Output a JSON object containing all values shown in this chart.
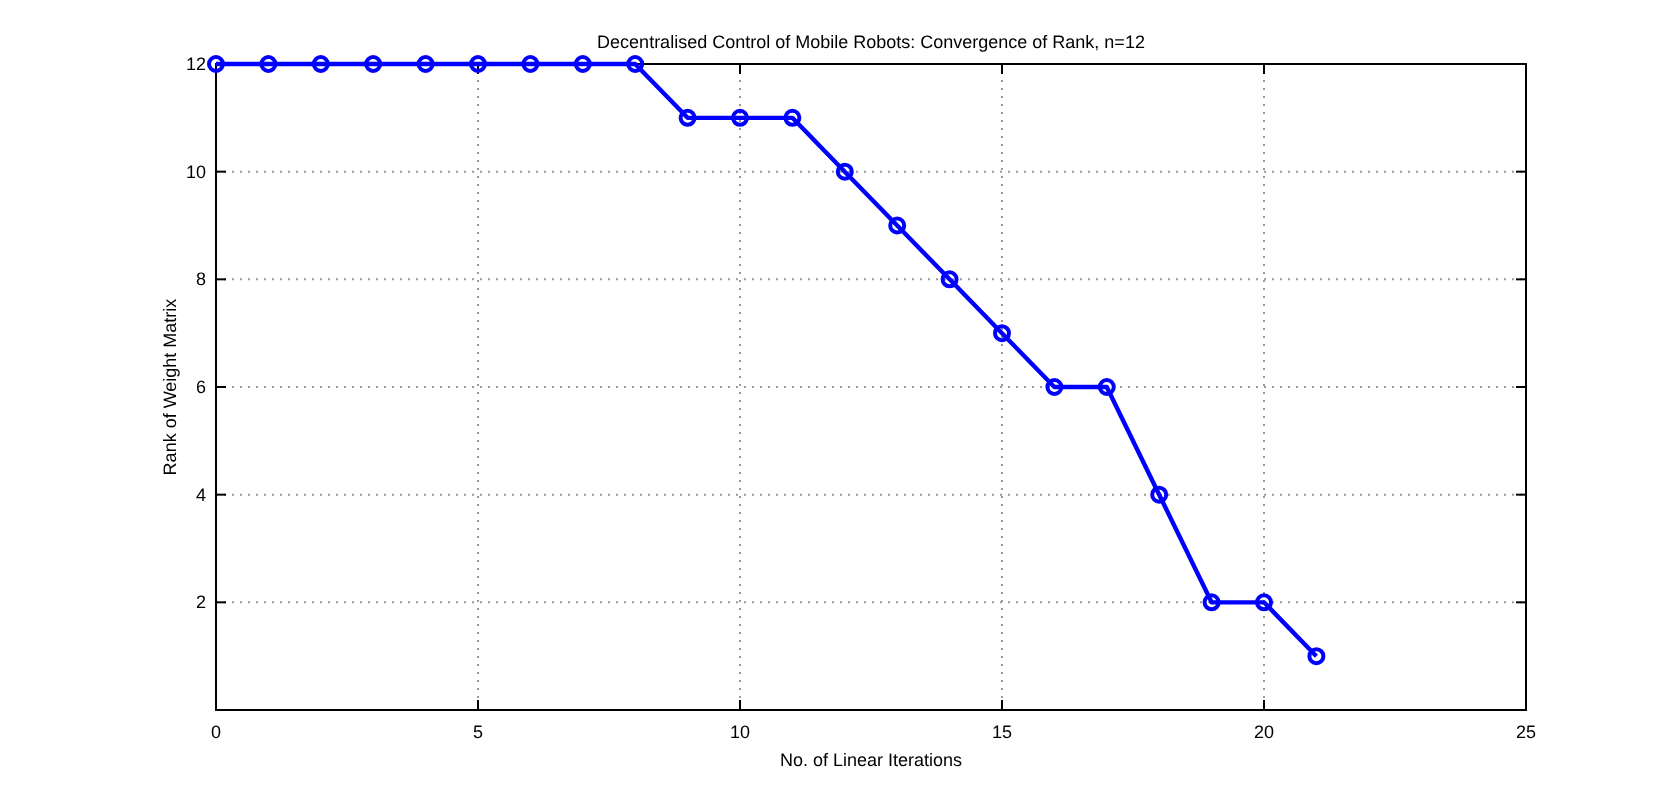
{
  "chart_data": {
    "type": "line",
    "title": "Decentralised Control of Mobile Robots: Convergence of Rank, n=12",
    "xlabel": "No. of Linear Iterations",
    "ylabel": "Rank of Weight Matrix",
    "x": [
      0,
      1,
      2,
      3,
      4,
      5,
      6,
      7,
      8,
      9,
      10,
      11,
      12,
      13,
      14,
      15,
      16,
      17,
      18,
      19,
      20,
      21
    ],
    "series": [
      {
        "color": "#0000ff",
        "values": [
          12,
          12,
          12,
          12,
          12,
          12,
          12,
          12,
          12,
          11,
          11,
          11,
          10,
          9,
          8,
          7,
          6,
          6,
          4,
          2,
          2,
          1
        ]
      }
    ],
    "xlim": [
      0,
      25
    ],
    "xticks": [
      0,
      5,
      10,
      15,
      20,
      25
    ],
    "ylim": [
      0,
      12
    ],
    "yticks": [
      2,
      4,
      6,
      8,
      10,
      12
    ],
    "grid": true,
    "marker": "circle",
    "line_style": "solid"
  }
}
